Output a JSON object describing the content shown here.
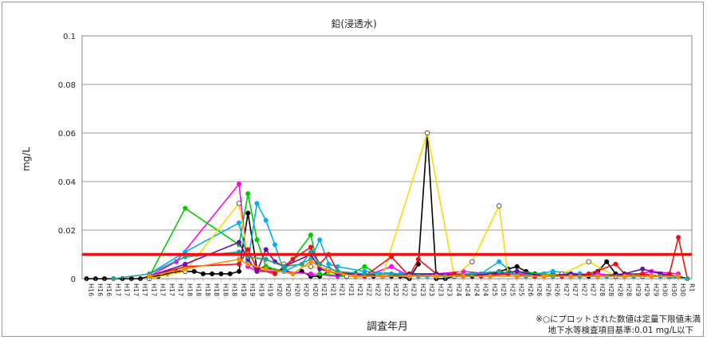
{
  "chart_data": {
    "type": "line",
    "title": "鉛(浸透水)",
    "xlabel": "調査年月",
    "ylabel": "mg/L",
    "ylim": [
      0,
      0.1
    ],
    "yticks": [
      "0",
      "0.02",
      "0.04",
      "0.06",
      "0.08",
      "0.1"
    ],
    "grid": true,
    "legend": "none",
    "n_points": 68,
    "x_tick_labels": [
      "H16",
      "H16",
      "H16",
      "H17",
      "H17",
      "H17",
      "H17",
      "H17",
      "H17",
      "H17",
      "H17",
      "H18",
      "H18",
      "H18",
      "H18",
      "H18",
      "H18",
      "H19",
      "H19",
      "H19",
      "H19",
      "H20",
      "H20",
      "H20",
      "H20",
      "H20",
      "H21",
      "H21",
      "H21",
      "H21",
      "H21",
      "H22",
      "H22",
      "H22",
      "H22",
      "H22",
      "H23",
      "H23",
      "H23",
      "H23",
      "H23",
      "H24",
      "H24",
      "H24",
      "H24",
      "H25",
      "H25",
      "H25",
      "H25",
      "H26",
      "H26",
      "H26",
      "H26",
      "H27",
      "H27",
      "H27",
      "H27",
      "H28",
      "H28",
      "H28",
      "H28",
      "H29",
      "H29",
      "H29",
      "H30",
      "H30",
      "H30",
      "R1"
    ],
    "threshold": {
      "value": 0.01,
      "color": "#ee1111"
    },
    "note_line1": "※○にプロットされた数値は定量下限値未満",
    "note_line2": "地下水等検査項目基準:0.01 mg/L以下",
    "series": [
      {
        "color": "#000000",
        "marker": "fill",
        "points": [
          [
            0,
            0
          ],
          [
            1,
            0
          ],
          [
            2,
            0
          ],
          [
            3,
            0
          ],
          [
            4,
            0
          ],
          [
            5,
            0
          ],
          [
            6,
            0
          ],
          [
            7,
            0.001
          ],
          [
            8,
            0.001
          ],
          [
            9,
            0.002
          ],
          [
            10,
            0.003
          ],
          [
            11,
            0.003
          ],
          [
            12,
            0.003
          ],
          [
            13,
            0.002
          ],
          [
            14,
            0.002
          ],
          [
            15,
            0.002
          ],
          [
            16,
            0.002
          ],
          [
            17,
            0.003
          ],
          [
            18,
            0.027
          ],
          [
            19,
            0.004
          ],
          [
            20,
            0.005
          ],
          [
            21,
            0.003
          ],
          [
            22,
            0.004
          ],
          [
            23,
            0.002
          ],
          [
            24,
            0.003
          ],
          [
            25,
            0.001
          ],
          [
            26,
            0.001
          ],
          [
            27,
            0.003
          ],
          [
            28,
            0.002
          ],
          [
            29,
            0.001
          ],
          [
            30,
            0.001
          ],
          [
            31,
            0.001
          ],
          [
            32,
            0.001
          ],
          [
            33,
            0.001
          ],
          [
            34,
            0.001
          ],
          [
            35,
            0.001
          ],
          [
            36,
            0
          ],
          [
            37,
            0.006
          ],
          [
            38,
            0.06
          ],
          [
            39,
            0
          ],
          [
            40,
            0
          ],
          [
            41,
            0.001
          ],
          [
            42,
            0.001
          ],
          [
            43,
            0.001
          ],
          [
            44,
            0.002
          ],
          [
            45,
            0.002
          ],
          [
            46,
            0.003
          ],
          [
            47,
            0.004
          ],
          [
            48,
            0.005
          ],
          [
            49,
            0.003
          ],
          [
            50,
            0.002
          ],
          [
            51,
            0.001
          ],
          [
            52,
            0.002
          ],
          [
            53,
            0.001
          ],
          [
            54,
            0.002
          ],
          [
            55,
            0.002
          ],
          [
            56,
            0.001
          ],
          [
            57,
            0.003
          ],
          [
            58,
            0.007
          ],
          [
            59,
            0.002
          ],
          [
            60,
            0.001
          ],
          [
            61,
            0.001
          ],
          [
            62,
            0.001
          ],
          [
            63,
            0.001
          ],
          [
            64,
            0.001
          ],
          [
            65,
            0.001
          ],
          [
            66,
            0.001
          ],
          [
            67,
            0
          ]
        ]
      },
      {
        "color": "#ff00ff",
        "marker": "fill",
        "points": [
          [
            7,
            0.001
          ],
          [
            10,
            0.007
          ],
          [
            17,
            0.039
          ],
          [
            18,
            0.005
          ],
          [
            19,
            0.003
          ],
          [
            22,
            0.003
          ],
          [
            25,
            0.002
          ],
          [
            28,
            0.001
          ],
          [
            31,
            0.001
          ],
          [
            34,
            0.005
          ],
          [
            36,
            0.001
          ],
          [
            39,
            0.002
          ],
          [
            42,
            0.003
          ],
          [
            45,
            0.002
          ],
          [
            48,
            0.002
          ],
          [
            51,
            0.002
          ],
          [
            54,
            0.001
          ],
          [
            57,
            0.002
          ],
          [
            60,
            0.001
          ],
          [
            63,
            0.003
          ],
          [
            66,
            0.002
          ]
        ]
      },
      {
        "color": "#00cc00",
        "marker": "fill",
        "points": [
          [
            7,
            0.001
          ],
          [
            11,
            0.029
          ],
          [
            17,
            0.014
          ],
          [
            18,
            0.035
          ],
          [
            19,
            0.016
          ],
          [
            20,
            0.005
          ],
          [
            22,
            0.003
          ],
          [
            25,
            0.018
          ],
          [
            26,
            0.002
          ],
          [
            29,
            0.001
          ],
          [
            31,
            0.005
          ],
          [
            33,
            0.001
          ],
          [
            36,
            0.002
          ],
          [
            39,
            0.001
          ],
          [
            42,
            0.001
          ],
          [
            45,
            0.002
          ],
          [
            48,
            0.003
          ],
          [
            51,
            0.002
          ],
          [
            54,
            0.001
          ],
          [
            57,
            0.001
          ],
          [
            60,
            0.002
          ],
          [
            63,
            0.001
          ],
          [
            66,
            0.001
          ]
        ]
      },
      {
        "color": "#00b0f0",
        "marker": "fill",
        "points": [
          [
            7,
            0.002
          ],
          [
            11,
            0.011
          ],
          [
            17,
            0.023
          ],
          [
            18,
            0.007
          ],
          [
            19,
            0.031
          ],
          [
            20,
            0.024
          ],
          [
            21,
            0.014
          ],
          [
            22,
            0.003
          ],
          [
            25,
            0.008
          ],
          [
            26,
            0.016
          ],
          [
            27,
            0.006
          ],
          [
            28,
            0.005
          ],
          [
            31,
            0.003
          ],
          [
            35,
            0.002
          ],
          [
            38,
            0.001
          ],
          [
            41,
            0.002
          ],
          [
            44,
            0.002
          ],
          [
            46,
            0.007
          ],
          [
            48,
            0.001
          ],
          [
            52,
            0.003
          ],
          [
            55,
            0.002
          ],
          [
            58,
            0.001
          ],
          [
            61,
            0.001
          ],
          [
            64,
            0.001
          ],
          [
            67,
            0
          ]
        ]
      },
      {
        "color": "#ffd700",
        "marker": "open",
        "points": [
          [
            7,
            0
          ],
          [
            11,
            0.003
          ],
          [
            17,
            0.031
          ],
          [
            18,
            0.009
          ],
          [
            22,
            0.006
          ],
          [
            25,
            0.005
          ],
          [
            27,
            0.004
          ],
          [
            29,
            0.001
          ],
          [
            33,
            0.001
          ],
          [
            38,
            0.06
          ],
          [
            41,
            0.001
          ],
          [
            43,
            0.007
          ],
          [
            46,
            0.03
          ],
          [
            47,
            0.002
          ],
          [
            50,
            0.001
          ],
          [
            53,
            0.002
          ],
          [
            56,
            0.007
          ],
          [
            59,
            0.001
          ],
          [
            62,
            0.001
          ],
          [
            65,
            0.001
          ]
        ]
      },
      {
        "color": "#ee1111",
        "marker": "fill",
        "points": [
          [
            7,
            0.001
          ],
          [
            11,
            0.005
          ],
          [
            17,
            0.006
          ],
          [
            18,
            0.012
          ],
          [
            19,
            0.004
          ],
          [
            21,
            0.002
          ],
          [
            23,
            0.008
          ],
          [
            25,
            0.013
          ],
          [
            26,
            0.006
          ],
          [
            27,
            0.01
          ],
          [
            28,
            0.003
          ],
          [
            31,
            0.001
          ],
          [
            34,
            0.009
          ],
          [
            36,
            0.001
          ],
          [
            37,
            0.008
          ],
          [
            39,
            0.002
          ],
          [
            41,
            0.002
          ],
          [
            44,
            0.001
          ],
          [
            47,
            0.002
          ],
          [
            50,
            0.001
          ],
          [
            53,
            0.001
          ],
          [
            56,
            0.002
          ],
          [
            59,
            0.006
          ],
          [
            60,
            0.002
          ],
          [
            62,
            0.002
          ],
          [
            64,
            0.001
          ],
          [
            65,
            0.002
          ],
          [
            66,
            0.017
          ],
          [
            67,
            0
          ]
        ]
      },
      {
        "color": "#6a0dad",
        "marker": "fill",
        "points": [
          [
            7,
            0.001
          ],
          [
            11,
            0.006
          ],
          [
            17,
            0.015
          ],
          [
            18,
            0.008
          ],
          [
            19,
            0.003
          ],
          [
            20,
            0.012
          ],
          [
            21,
            0.007
          ],
          [
            22,
            0.005
          ],
          [
            25,
            0.01
          ],
          [
            26,
            0.004
          ],
          [
            28,
            0.002
          ],
          [
            30,
            0.002
          ],
          [
            33,
            0.001
          ],
          [
            36,
            0.002
          ],
          [
            39,
            0.002
          ],
          [
            42,
            0.001
          ],
          [
            45,
            0.002
          ],
          [
            48,
            0.003
          ],
          [
            51,
            0.001
          ],
          [
            54,
            0.002
          ],
          [
            57,
            0.001
          ],
          [
            60,
            0.002
          ],
          [
            62,
            0.004
          ],
          [
            64,
            0.002
          ],
          [
            66,
            0.001
          ]
        ]
      },
      {
        "color": "#20a0a0",
        "marker": "fill",
        "points": [
          [
            3,
            0
          ],
          [
            7,
            0.002
          ],
          [
            11,
            0.009
          ],
          [
            17,
            0.011
          ],
          [
            18,
            0.009
          ],
          [
            20,
            0.008
          ],
          [
            22,
            0.005
          ],
          [
            24,
            0.006
          ],
          [
            25,
            0.011
          ],
          [
            26,
            0.006
          ],
          [
            28,
            0.003
          ],
          [
            31,
            0.002
          ],
          [
            34,
            0.002
          ],
          [
            37,
            0.001
          ],
          [
            40,
            0.001
          ],
          [
            43,
            0.002
          ],
          [
            46,
            0.003
          ],
          [
            49,
            0.001
          ],
          [
            52,
            0.001
          ],
          [
            55,
            0.001
          ],
          [
            58,
            0.001
          ],
          [
            61,
            0.001
          ],
          [
            64,
            0.001
          ],
          [
            67,
            0
          ]
        ]
      },
      {
        "color": "#ff8c00",
        "marker": "fill",
        "points": [
          [
            7,
            0.001
          ],
          [
            11,
            0.004
          ],
          [
            17,
            0.008
          ],
          [
            18,
            0.006
          ],
          [
            20,
            0.004
          ],
          [
            23,
            0.002
          ],
          [
            25,
            0.007
          ],
          [
            27,
            0.003
          ],
          [
            30,
            0.001
          ],
          [
            33,
            0.001
          ],
          [
            36,
            0.001
          ],
          [
            39,
            0.001
          ],
          [
            42,
            0.001
          ],
          [
            45,
            0.001
          ],
          [
            48,
            0.001
          ],
          [
            51,
            0.001
          ],
          [
            54,
            0.001
          ],
          [
            57,
            0.001
          ],
          [
            60,
            0.001
          ],
          [
            63,
            0.001
          ],
          [
            66,
            0.001
          ]
        ]
      }
    ]
  }
}
